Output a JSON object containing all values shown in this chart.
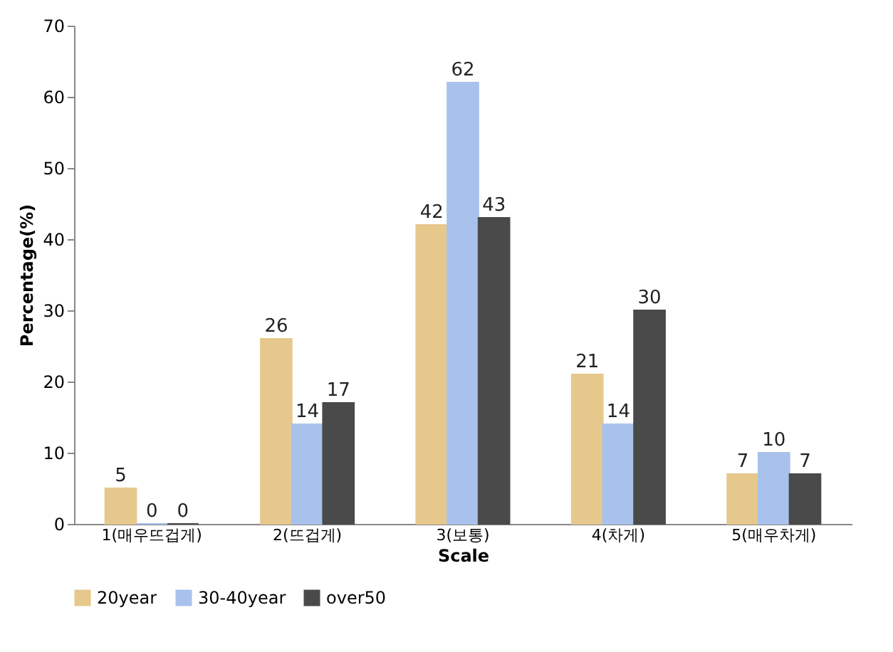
{
  "chart_data": {
    "type": "bar",
    "xlabel": "Scale",
    "ylabel": "Percentage(%)",
    "categories": [
      "1(매우뜨겁게)",
      "2(뜨겁게)",
      "3(보통)",
      "4(차게)",
      "5(매우차게)"
    ],
    "series": [
      {
        "name": "20year",
        "color": "#e6c88c",
        "values": [
          5,
          26,
          42,
          21,
          7
        ]
      },
      {
        "name": "30-40year",
        "color": "#a8c2ec",
        "values": [
          0,
          14,
          62,
          14,
          10
        ]
      },
      {
        "name": "over50",
        "color": "#4a4a4a",
        "values": [
          0,
          17,
          43,
          30,
          7
        ]
      }
    ],
    "ylim": [
      0,
      70
    ],
    "yticks": [
      0,
      10,
      20,
      30,
      40,
      50,
      60,
      70
    ],
    "data_labels": true,
    "grid": false,
    "legend": "bottom"
  }
}
